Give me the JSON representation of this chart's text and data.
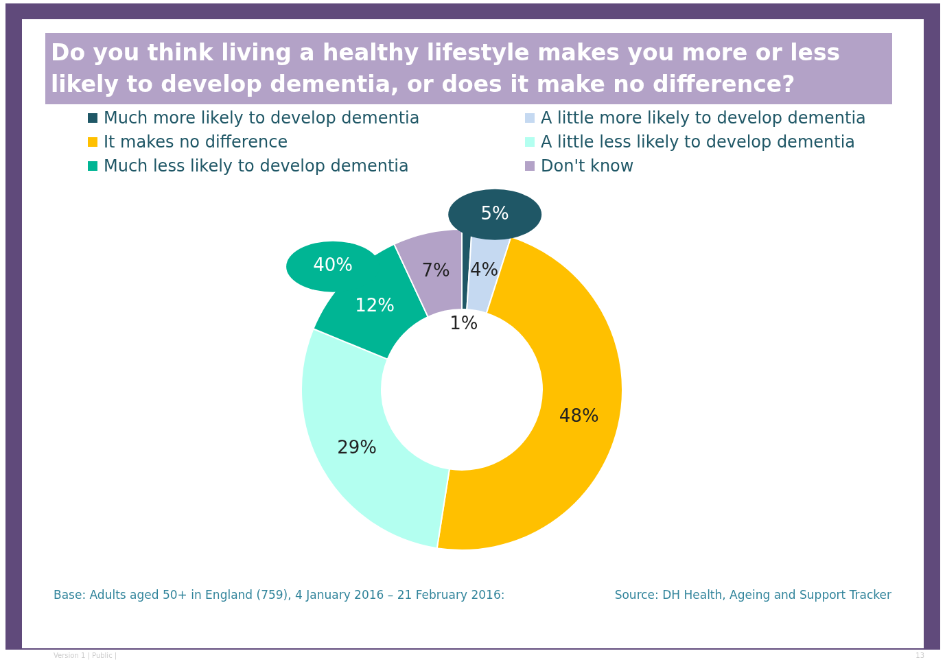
{
  "chart_data": {
    "type": "donut",
    "title": "Do you think living a healthy lifestyle makes you more or less likely to develop dementia, or does it make no difference?",
    "categories": [
      "Much more likely to develop dementia",
      "A little more likely to develop dementia",
      "It makes no difference",
      "A little less likely to develop dementia",
      "Much less likely to develop dementia",
      "Don't know"
    ],
    "values": [
      1,
      4,
      48,
      29,
      12,
      7
    ],
    "colors": [
      "#1f5766",
      "#c5d9f1",
      "#ffc000",
      "#b3fff0",
      "#00b594",
      "#b3a2c7"
    ],
    "value_labels": [
      "1%",
      "4%",
      "48%",
      "29%",
      "12%",
      "7%"
    ],
    "legend": "top",
    "annotations": [
      {
        "text": "5%",
        "x": "A little more likely to develop dementia"
      },
      {
        "text": "40%",
        "x": "Much less likely to develop dementia"
      },
      "Base: Adults aged 50+ in England (759), 4 January 2016 – 21 February 2016:",
      "Source: DH Health, Ageing and Support Tracker",
      "Version 1  | Public |",
      "13"
    ]
  }
}
